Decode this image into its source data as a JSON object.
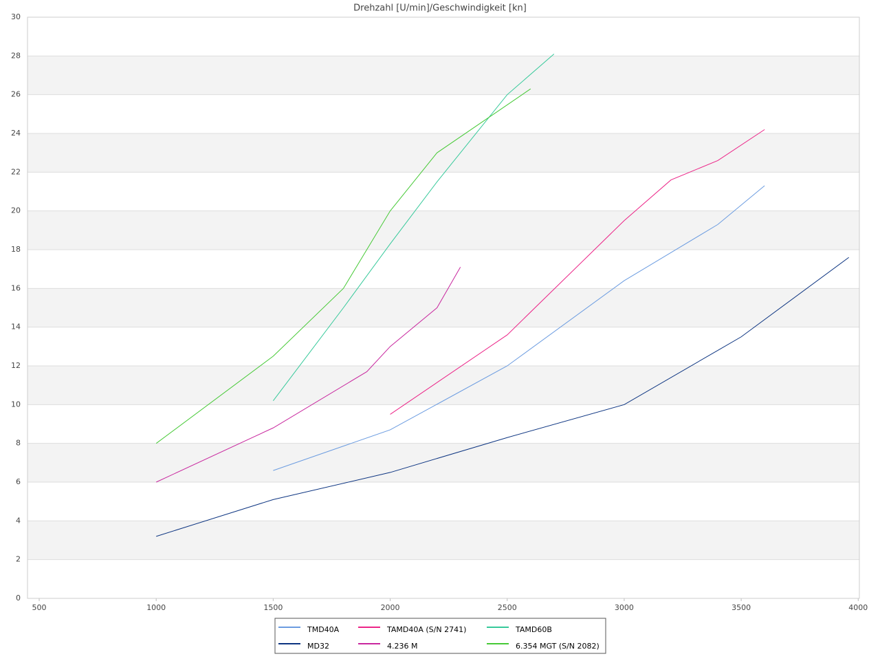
{
  "chart_data": {
    "type": "line",
    "title": "Drehzahl [U/min]/Geschwindigkeit [kn]",
    "xlim": [
      450,
      4005
    ],
    "xticks": [
      500,
      1000,
      1500,
      2000,
      2500,
      3000,
      3500,
      4000
    ],
    "ylim": [
      0,
      30
    ],
    "yticks": [
      0,
      2,
      4,
      6,
      8,
      10,
      12,
      14,
      16,
      18,
      20,
      22,
      24,
      26,
      28,
      30
    ],
    "grid": true,
    "legend": "bottom",
    "series": [
      {
        "name": "TMD40A",
        "color": "#6a9be0",
        "x": [
          1500,
          2000,
          2500,
          3000,
          3400,
          3600
        ],
        "values": [
          6.6,
          8.7,
          12,
          16.4,
          19.3,
          21.3
        ]
      },
      {
        "name": "MD32",
        "color": "#0b3380",
        "x": [
          1000,
          1500,
          2000,
          2500,
          3000,
          3500,
          3960
        ],
        "values": [
          3.2,
          5.1,
          6.5,
          8.3,
          10,
          13.5,
          17.6
        ]
      },
      {
        "name": "TAMD40A (S/N 2741)",
        "color": "#ec2387",
        "x": [
          2000,
          2500,
          3000,
          3200,
          3400,
          3600
        ],
        "values": [
          9.5,
          13.6,
          19.5,
          21.6,
          22.6,
          24.2
        ]
      },
      {
        "name": "4.236 M",
        "color": "#c8269e",
        "x": [
          1000,
          1500,
          1900,
          2000,
          2200,
          2300
        ],
        "values": [
          6,
          8.8,
          11.7,
          13,
          15,
          17.1
        ]
      },
      {
        "name": "TAMD60B",
        "color": "#35c99a",
        "x": [
          1500,
          1800,
          2000,
          2200,
          2500,
          2700
        ],
        "values": [
          10.2,
          15,
          18.3,
          21.5,
          26,
          28.1
        ]
      },
      {
        "name": "6.354 MGT (S/N 2082)",
        "color": "#45c935",
        "x": [
          1000,
          1500,
          1800,
          2000,
          2200,
          2600
        ],
        "values": [
          8,
          12.5,
          16,
          20,
          23,
          26.3
        ]
      }
    ]
  }
}
